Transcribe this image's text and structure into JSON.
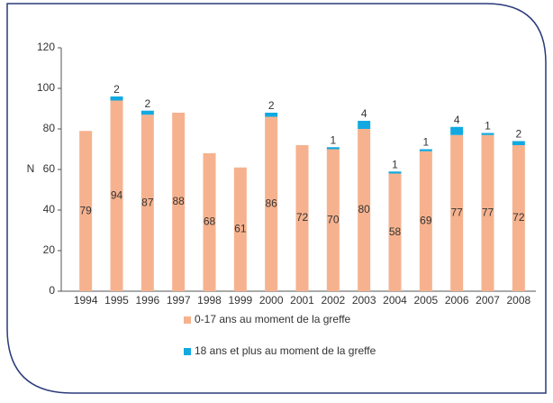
{
  "chart_data": {
    "type": "stacked_bar",
    "y_label": "N",
    "categories": [
      "1994",
      "1995",
      "1996",
      "1997",
      "1998",
      "1999",
      "2000",
      "2001",
      "2002",
      "2003",
      "2004",
      "2005",
      "2006",
      "2007",
      "2008"
    ],
    "series": [
      {
        "name": "0-17 ans au moment de la greffe",
        "color": "#f6b28e",
        "values": [
          79,
          94,
          87,
          88,
          68,
          61,
          86,
          72,
          70,
          80,
          58,
          69,
          77,
          77,
          72
        ]
      },
      {
        "name": "18 ans et plus au moment de la greffe",
        "color": "#12a9e0",
        "values": [
          null,
          2,
          2,
          null,
          null,
          null,
          2,
          null,
          1,
          4,
          1,
          1,
          4,
          1,
          2
        ]
      }
    ],
    "ylim": [
      0,
      120
    ],
    "yticks": [
      0,
      20,
      40,
      60,
      80,
      100,
      120
    ]
  }
}
